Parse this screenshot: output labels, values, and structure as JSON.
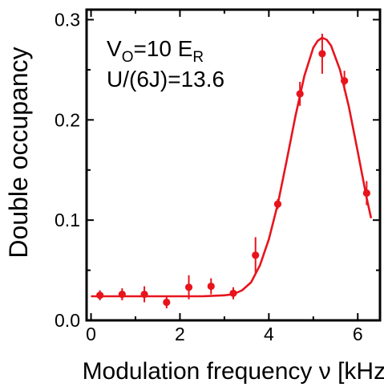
{
  "chart_data": {
    "type": "scatter",
    "title": "",
    "xlabel": "Modulation frequency ν [kHz]",
    "ylabel": "Double occupancy",
    "xlim": [
      -0.1,
      6.5
    ],
    "ylim": [
      0.0,
      0.31
    ],
    "x_ticks": [
      0,
      2,
      4,
      6
    ],
    "y_ticks": [
      0.0,
      0.1,
      0.2,
      0.3
    ],
    "y_tick_labels": [
      "0.0",
      "0.1",
      "0.2",
      "0.3"
    ],
    "grid": false,
    "legend": "none",
    "colors": {
      "series": "#e8141c",
      "axes": "#000000"
    },
    "annotations": {
      "line1_main": "V",
      "line1_sub": "O",
      "line1_rest": "=10 E",
      "line1_sub2": "R",
      "line2": "U/(6J)=13.6"
    },
    "series": [
      {
        "kind": "points",
        "x": [
          0.2,
          0.7,
          1.2,
          1.7,
          2.2,
          2.7,
          3.2,
          3.7,
          4.2,
          4.7,
          5.2,
          5.7,
          6.2
        ],
        "y": [
          0.025,
          0.026,
          0.026,
          0.018,
          0.033,
          0.034,
          0.027,
          0.065,
          0.116,
          0.226,
          0.266,
          0.239,
          0.127
        ],
        "yerr": [
          0.005,
          0.006,
          0.008,
          0.006,
          0.012,
          0.008,
          0.006,
          0.018,
          0.005,
          0.012,
          0.02,
          0.01,
          0.012
        ]
      },
      {
        "kind": "fit",
        "x": [
          0.0,
          0.5,
          1.0,
          1.5,
          2.0,
          2.5,
          3.0,
          3.2,
          3.4,
          3.6,
          3.8,
          4.0,
          4.2,
          4.4,
          4.6,
          4.8,
          5.0,
          5.1,
          5.2,
          5.3,
          5.4,
          5.6,
          5.8,
          6.0,
          6.2,
          6.3
        ],
        "y": [
          0.024,
          0.024,
          0.024,
          0.024,
          0.024,
          0.024,
          0.025,
          0.026,
          0.03,
          0.038,
          0.055,
          0.081,
          0.116,
          0.159,
          0.204,
          0.244,
          0.272,
          0.279,
          0.282,
          0.28,
          0.274,
          0.25,
          0.213,
          0.168,
          0.122,
          0.102
        ]
      }
    ]
  }
}
